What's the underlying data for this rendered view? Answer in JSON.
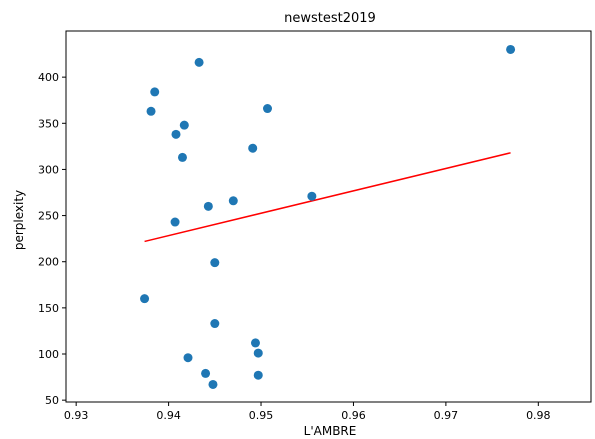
{
  "chart_data": {
    "type": "scatter",
    "title": "newstest2019",
    "xlabel": "L'AMBRE",
    "ylabel": "perplexity",
    "xlim": [
      0.9289,
      0.9857
    ],
    "ylim": [
      48,
      450
    ],
    "xticks": [
      0.93,
      0.94,
      0.95,
      0.96,
      0.97,
      0.98
    ],
    "xtick_labels": [
      "0.93",
      "0.94",
      "0.95",
      "0.96",
      "0.97",
      "0.98"
    ],
    "yticks": [
      50,
      100,
      150,
      200,
      250,
      300,
      350,
      400
    ],
    "ytick_labels": [
      "50",
      "100",
      "150",
      "200",
      "250",
      "300",
      "350",
      "400"
    ],
    "grid": false,
    "points": [
      {
        "x": 0.9433,
        "y": 416
      },
      {
        "x": 0.9385,
        "y": 384
      },
      {
        "x": 0.9381,
        "y": 363
      },
      {
        "x": 0.9507,
        "y": 366
      },
      {
        "x": 0.9417,
        "y": 348
      },
      {
        "x": 0.9408,
        "y": 338
      },
      {
        "x": 0.9491,
        "y": 323
      },
      {
        "x": 0.9415,
        "y": 313
      },
      {
        "x": 0.977,
        "y": 430
      },
      {
        "x": 0.9555,
        "y": 271
      },
      {
        "x": 0.947,
        "y": 266
      },
      {
        "x": 0.9443,
        "y": 260
      },
      {
        "x": 0.9407,
        "y": 243
      },
      {
        "x": 0.945,
        "y": 199
      },
      {
        "x": 0.9374,
        "y": 160
      },
      {
        "x": 0.945,
        "y": 133
      },
      {
        "x": 0.9494,
        "y": 112
      },
      {
        "x": 0.9497,
        "y": 101
      },
      {
        "x": 0.9421,
        "y": 96
      },
      {
        "x": 0.944,
        "y": 79
      },
      {
        "x": 0.9497,
        "y": 77
      },
      {
        "x": 0.9448,
        "y": 67
      }
    ],
    "point_color": "#1f77b4",
    "trendline": {
      "x": [
        0.9374,
        0.977
      ],
      "y": [
        222,
        318
      ],
      "color": "#ff0000"
    }
  }
}
